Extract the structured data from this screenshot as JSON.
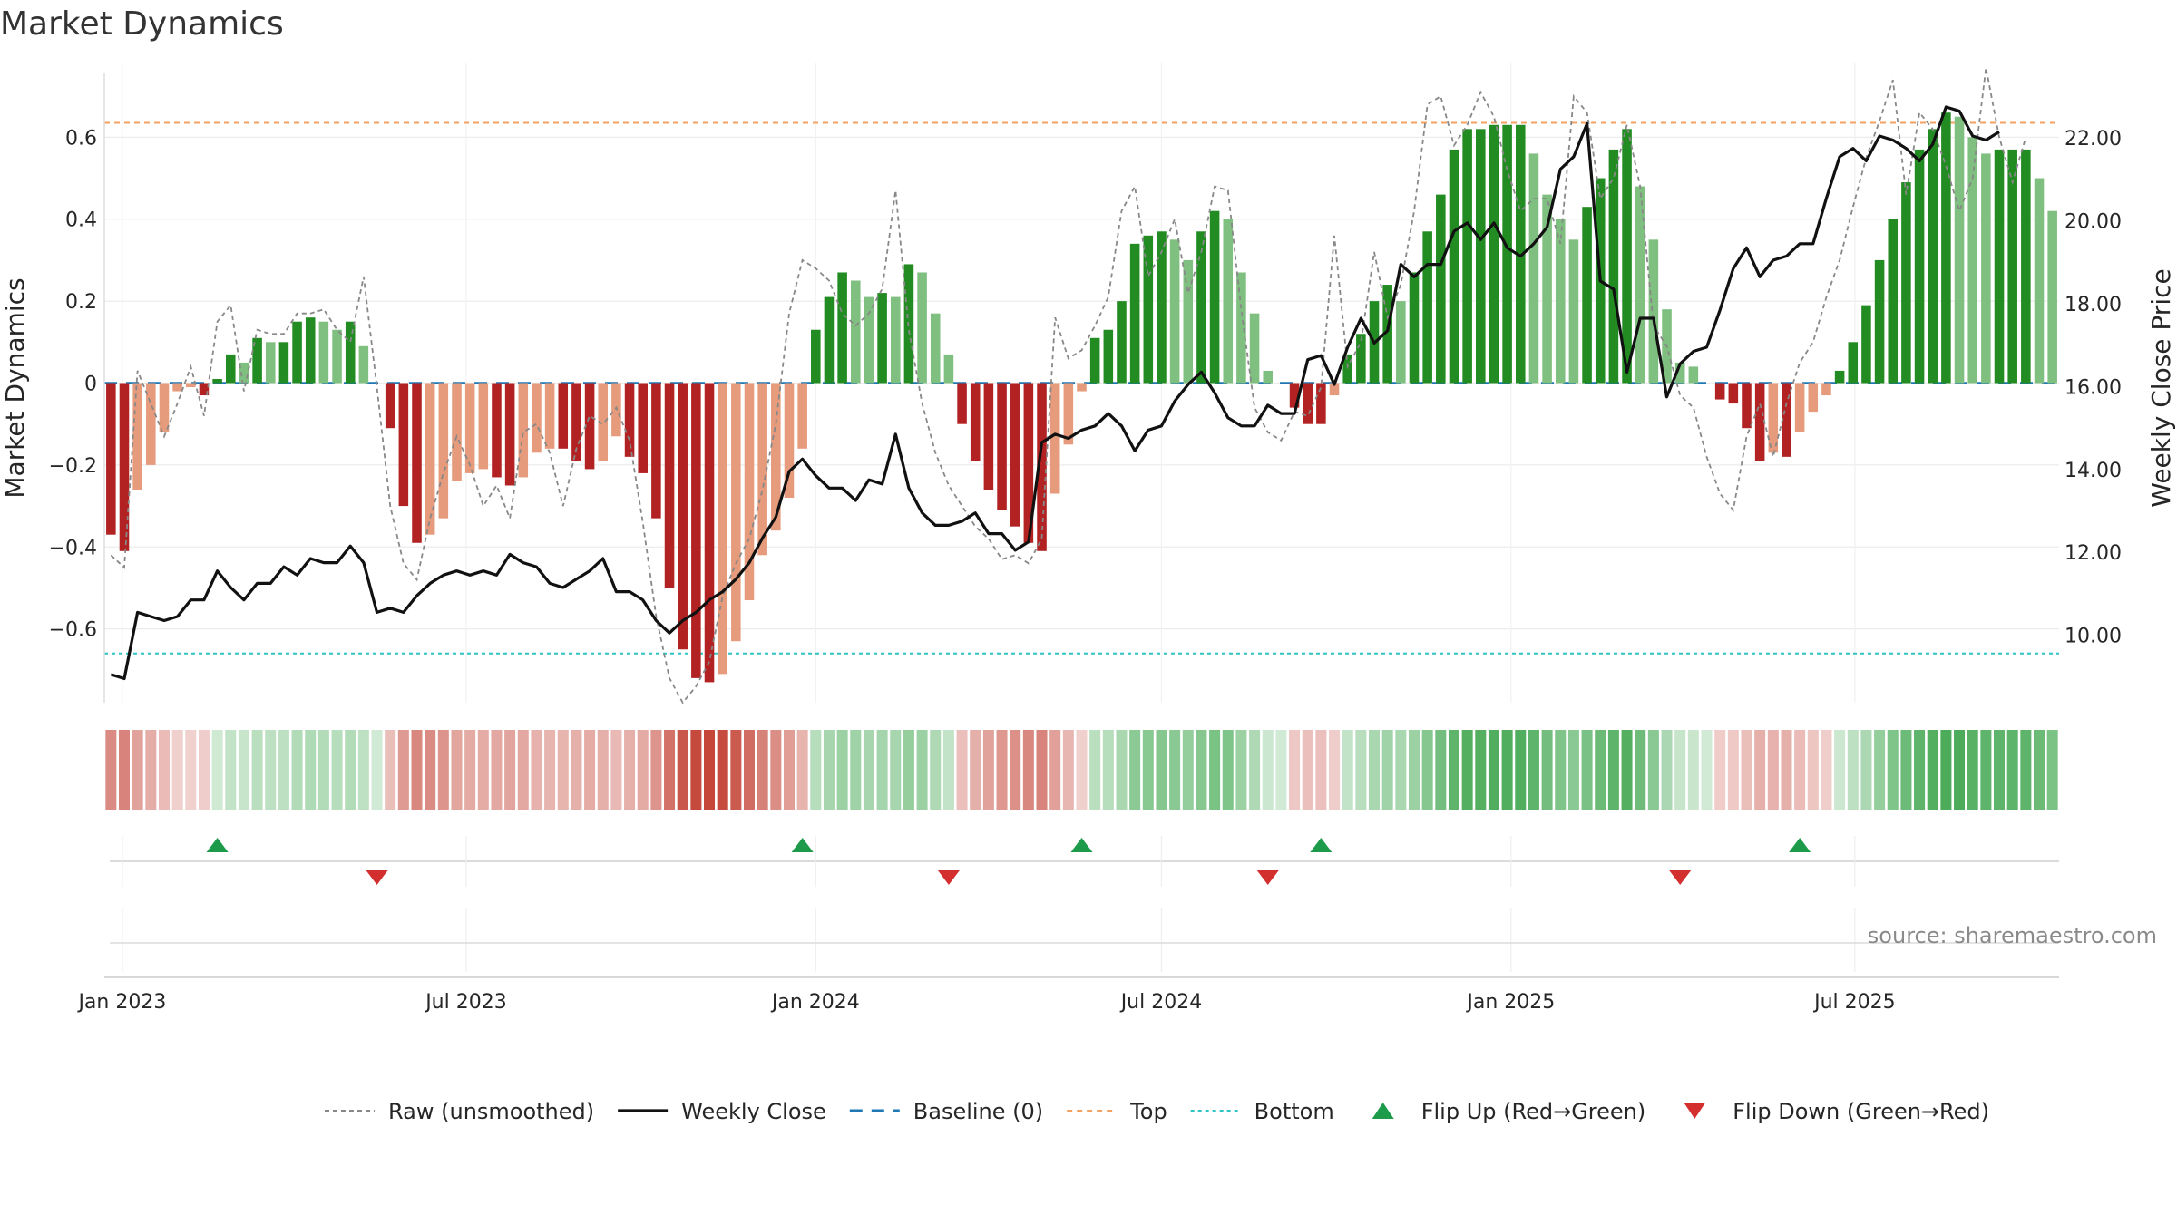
{
  "chart_data": {
    "type": "bar",
    "title": "Market Dynamics",
    "ylabel_left": "Market Dynamics",
    "ylabel_right": "Weekly Close Price",
    "left_ylim": [
      -0.78,
      0.78
    ],
    "right_ylim": [
      8.37,
      23.8
    ],
    "left_yticks": [
      "−0.6",
      "−0.4",
      "−0.2",
      "0",
      "0.2",
      "0.4",
      "0.6"
    ],
    "left_ytick_values": [
      -0.6,
      -0.4,
      -0.2,
      0,
      0.2,
      0.4,
      0.6
    ],
    "right_yticks": [
      "10.00",
      "12.00",
      "14.00",
      "16.00",
      "18.00",
      "20.00",
      "22.00"
    ],
    "right_ytick_values": [
      10,
      12,
      14,
      16,
      18,
      20,
      22
    ],
    "x_start": "2022-12-26",
    "xticks": [
      {
        "date": "2023-01-01",
        "label": "Jan 2023"
      },
      {
        "date": "2023-07-01",
        "label": "Jul 2023"
      },
      {
        "date": "2024-01-01",
        "label": "Jan 2024"
      },
      {
        "date": "2024-07-01",
        "label": "Jul 2024"
      },
      {
        "date": "2025-01-01",
        "label": "Jan 2025"
      },
      {
        "date": "2025-07-01",
        "label": "Jul 2025"
      }
    ],
    "top_level": 0.635,
    "bottom_level": -0.66,
    "baseline": 0,
    "colors": {
      "pos_strong": "#228b22",
      "pos_weak": "#7fbf7f",
      "neg_strong": "#b22222",
      "neg_weak": "#e59b7c",
      "close": "#111111",
      "raw": "#888888",
      "baseline": "#1f77b4",
      "top": "#f4a261",
      "bottom": "#2ec4c4",
      "flip_up": "#1e9b4a",
      "flip_down": "#d32f2f"
    },
    "dynamics": [
      -0.37,
      -0.41,
      -0.26,
      -0.2,
      -0.12,
      -0.02,
      -0.01,
      -0.03,
      0.01,
      0.07,
      0.05,
      0.11,
      0.1,
      0.1,
      0.15,
      0.16,
      0.15,
      0.13,
      0.15,
      0.09,
      0,
      -0.11,
      -0.3,
      -0.39,
      -0.37,
      -0.33,
      -0.24,
      -0.22,
      -0.21,
      -0.23,
      -0.25,
      -0.23,
      -0.17,
      -0.16,
      -0.16,
      -0.19,
      -0.21,
      -0.19,
      -0.13,
      -0.18,
      -0.22,
      -0.33,
      -0.5,
      -0.65,
      -0.72,
      -0.73,
      -0.71,
      -0.63,
      -0.53,
      -0.42,
      -0.36,
      -0.28,
      -0.16,
      0.13,
      0.21,
      0.27,
      0.25,
      0.21,
      0.22,
      0.21,
      0.29,
      0.27,
      0.17,
      0.07,
      -0.1,
      -0.19,
      -0.26,
      -0.31,
      -0.35,
      -0.39,
      -0.41,
      -0.27,
      -0.15,
      -0.02,
      0.11,
      0.13,
      0.2,
      0.34,
      0.36,
      0.37,
      0.35,
      0.3,
      0.37,
      0.42,
      0.4,
      0.27,
      0.17,
      0.03,
      0,
      -0.06,
      -0.1,
      -0.1,
      -0.03,
      0.07,
      0.12,
      0.2,
      0.24,
      0.2,
      0.27,
      0.37,
      0.46,
      0.57,
      0.62,
      0.62,
      0.63,
      0.63,
      0.63,
      0.56,
      0.46,
      0.4,
      0.35,
      0.43,
      0.5,
      0.57,
      0.62,
      0.48,
      0.35,
      0.18,
      0.05,
      0.04,
      0,
      -0.04,
      -0.05,
      -0.11,
      -0.19,
      -0.17,
      -0.18,
      -0.12,
      -0.07,
      -0.03,
      0.03,
      0.1,
      0.19,
      0.3,
      0.4,
      0.49,
      0.57,
      0.62,
      0.66,
      0.65,
      0.6,
      0.56,
      0.57,
      0.57,
      0.57,
      0.5,
      0.42
    ],
    "raw": [
      -0.42,
      -0.45,
      0.03,
      -0.05,
      -0.13,
      -0.05,
      0.04,
      -0.08,
      0.15,
      0.19,
      -0.02,
      0.13,
      0.12,
      0.12,
      0.17,
      0.17,
      0.18,
      0.13,
      0.1,
      0.26,
      -0.01,
      -0.3,
      -0.44,
      -0.48,
      -0.33,
      -0.22,
      -0.13,
      -0.2,
      -0.3,
      -0.25,
      -0.33,
      -0.12,
      -0.1,
      -0.17,
      -0.3,
      -0.16,
      -0.08,
      -0.1,
      -0.06,
      -0.14,
      -0.34,
      -0.57,
      -0.72,
      -0.78,
      -0.74,
      -0.68,
      -0.52,
      -0.44,
      -0.38,
      -0.26,
      -0.1,
      0.17,
      0.3,
      0.28,
      0.25,
      0.17,
      0.14,
      0.17,
      0.23,
      0.47,
      0.13,
      -0.05,
      -0.17,
      -0.25,
      -0.3,
      -0.35,
      -0.38,
      -0.43,
      -0.42,
      -0.44,
      -0.38,
      0.16,
      0.06,
      0.08,
      0.14,
      0.21,
      0.42,
      0.48,
      0.26,
      0.32,
      0.4,
      0.22,
      0.32,
      0.48,
      0.47,
      0.18,
      -0.06,
      -0.12,
      -0.14,
      -0.07,
      -0.08,
      -0.01,
      0.36,
      0.04,
      0.1,
      0.32,
      0.16,
      0.24,
      0.42,
      0.68,
      0.7,
      0.58,
      0.63,
      0.71,
      0.65,
      0.52,
      0.42,
      0.45,
      0.45,
      0.34,
      0.7,
      0.66,
      0.45,
      0.5,
      0.63,
      0.48,
      0.14,
      0.09,
      -0.03,
      -0.06,
      -0.18,
      -0.27,
      -0.31,
      -0.13,
      -0.05,
      -0.18,
      -0.05,
      0.05,
      0.1,
      0.21,
      0.3,
      0.43,
      0.55,
      0.64,
      0.74,
      0.46,
      0.66,
      0.62,
      0.53,
      0.42,
      0.5,
      0.77,
      0.6,
      0.49,
      0.6
    ],
    "close": [
      9.05,
      8.95,
      10.55,
      10.45,
      10.35,
      10.45,
      10.85,
      10.85,
      11.55,
      11.15,
      10.85,
      11.25,
      11.25,
      11.65,
      11.45,
      11.85,
      11.75,
      11.75,
      12.15,
      11.75,
      10.55,
      10.65,
      10.55,
      10.95,
      11.25,
      11.45,
      11.55,
      11.45,
      11.55,
      11.45,
      11.95,
      11.75,
      11.65,
      11.25,
      11.15,
      11.35,
      11.55,
      11.85,
      11.05,
      11.05,
      10.85,
      10.35,
      10.05,
      10.35,
      10.55,
      10.85,
      11.05,
      11.35,
      11.75,
      12.35,
      12.85,
      13.95,
      14.25,
      13.85,
      13.55,
      13.55,
      13.25,
      13.75,
      13.65,
      14.85,
      13.55,
      12.95,
      12.65,
      12.65,
      12.75,
      12.95,
      12.45,
      12.45,
      12.05,
      12.25,
      14.65,
      14.85,
      14.75,
      14.95,
      15.05,
      15.35,
      15.05,
      14.45,
      14.95,
      15.05,
      15.65,
      16.05,
      16.35,
      15.85,
      15.25,
      15.05,
      15.05,
      15.55,
      15.35,
      15.35,
      16.65,
      16.75,
      16.05,
      16.95,
      17.65,
      17.05,
      17.35,
      18.95,
      18.65,
      18.95,
      18.95,
      19.75,
      19.95,
      19.55,
      19.95,
      19.35,
      19.15,
      19.45,
      19.85,
      21.25,
      21.55,
      22.35,
      18.55,
      18.35,
      16.35,
      17.65,
      17.65,
      15.75,
      16.55,
      16.85,
      16.95,
      17.85,
      18.85,
      19.35,
      18.65,
      19.05,
      19.15,
      19.45,
      19.45,
      20.55,
      21.55,
      21.75,
      21.45,
      22.05,
      21.95,
      21.75,
      21.45,
      21.85,
      22.75,
      22.65,
      22.05,
      21.95,
      22.15
    ],
    "flips": [
      {
        "type": "up",
        "week": 8,
        "label": "Flip Up (Red→Green)"
      },
      {
        "type": "down",
        "week": 20,
        "label": "Flip Down (Green→Red)"
      },
      {
        "type": "up",
        "week": 52,
        "label": "Flip Up (Red→Green)"
      },
      {
        "type": "down",
        "week": 63,
        "label": "Flip Down (Green→Red)"
      },
      {
        "type": "up",
        "week": 73,
        "label": "Flip Up (Red→Green)"
      },
      {
        "type": "down",
        "week": 87,
        "label": "Flip Down (Green→Red)"
      },
      {
        "type": "up",
        "week": 91,
        "label": "Flip Up (Red→Green)"
      },
      {
        "type": "down",
        "week": 118,
        "label": "Flip Down (Green→Red)"
      },
      {
        "type": "up",
        "week": 127,
        "label": "Flip Up (Red→Green)"
      }
    ],
    "legend": [
      {
        "key": "raw",
        "label": "Raw (unsmoothed)"
      },
      {
        "key": "close",
        "label": "Weekly Close"
      },
      {
        "key": "baseline",
        "label": "Baseline (0)"
      },
      {
        "key": "top",
        "label": "Top"
      },
      {
        "key": "bottom",
        "label": "Bottom"
      },
      {
        "key": "flip_up",
        "label": "Flip Up (Red→Green)"
      },
      {
        "key": "flip_down",
        "label": "Flip Down (Green→Red)"
      }
    ],
    "legend_position": "bottom-center",
    "grid": true
  },
  "source": "source: sharemaestro.com"
}
